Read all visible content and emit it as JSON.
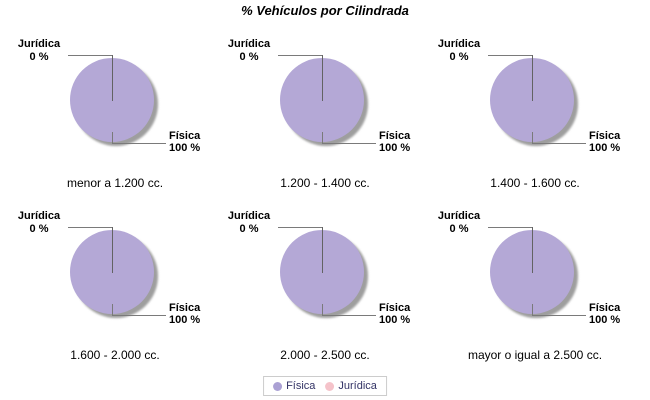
{
  "title": "% Vehículos por Cilindrada",
  "colors": {
    "pie_fill": "#b4a8d6",
    "pie_shadow": "#9e9e9e",
    "legend_fisica": "#aba1d4",
    "legend_juridica": "#f5c3ca",
    "legend_text": "#333366",
    "leader_line": "#7a7a7a"
  },
  "charts": [
    {
      "caption": "menor a 1.200 cc.",
      "juridica_label": "Jurídica",
      "juridica_value": "0 %",
      "fisica_label": "Física",
      "fisica_value": "100 %"
    },
    {
      "caption": "1.200 - 1.400 cc.",
      "juridica_label": "Jurídica",
      "juridica_value": "0 %",
      "fisica_label": "Física",
      "fisica_value": "100 %"
    },
    {
      "caption": "1.400 - 1.600 cc.",
      "juridica_label": "Jurídica",
      "juridica_value": "0 %",
      "fisica_label": "Física",
      "fisica_value": "100 %"
    },
    {
      "caption": "1.600 - 2.000 cc.",
      "juridica_label": "Jurídica",
      "juridica_value": "0 %",
      "fisica_label": "Física",
      "fisica_value": "100 %"
    },
    {
      "caption": "2.000 - 2.500 cc.",
      "juridica_label": "Jurídica",
      "juridica_value": "0 %",
      "fisica_label": "Física",
      "fisica_value": "100 %"
    },
    {
      "caption": "mayor o igual a 2.500 cc.",
      "juridica_label": "Jurídica",
      "juridica_value": "0 %",
      "fisica_label": "Física",
      "fisica_value": "100 %"
    }
  ],
  "legend": {
    "items": [
      {
        "label": "Física",
        "color": "#aba1d4"
      },
      {
        "label": "Jurídica",
        "color": "#f5c3ca"
      }
    ]
  },
  "chart_data": [
    {
      "type": "pie",
      "title": "menor a 1.200 cc.",
      "categories": [
        "Física",
        "Jurídica"
      ],
      "values": [
        100,
        0
      ],
      "colors": [
        "#b4a8d6",
        "#f5c3ca"
      ],
      "legend_position": "bottom"
    },
    {
      "type": "pie",
      "title": "1.200 - 1.400 cc.",
      "categories": [
        "Física",
        "Jurídica"
      ],
      "values": [
        100,
        0
      ],
      "colors": [
        "#b4a8d6",
        "#f5c3ca"
      ],
      "legend_position": "bottom"
    },
    {
      "type": "pie",
      "title": "1.400 - 1.600 cc.",
      "categories": [
        "Física",
        "Jurídica"
      ],
      "values": [
        100,
        0
      ],
      "colors": [
        "#b4a8d6",
        "#f5c3ca"
      ],
      "legend_position": "bottom"
    },
    {
      "type": "pie",
      "title": "1.600 - 2.000 cc.",
      "categories": [
        "Física",
        "Jurídica"
      ],
      "values": [
        100,
        0
      ],
      "colors": [
        "#b4a8d6",
        "#f5c3ca"
      ],
      "legend_position": "bottom"
    },
    {
      "type": "pie",
      "title": "2.000 - 2.500 cc.",
      "categories": [
        "Física",
        "Jurídica"
      ],
      "values": [
        100,
        0
      ],
      "colors": [
        "#b4a8d6",
        "#f5c3ca"
      ],
      "legend_position": "bottom"
    },
    {
      "type": "pie",
      "title": "mayor o igual a 2.500 cc.",
      "categories": [
        "Física",
        "Jurídica"
      ],
      "values": [
        100,
        0
      ],
      "colors": [
        "#b4a8d6",
        "#f5c3ca"
      ],
      "legend_position": "bottom"
    }
  ]
}
